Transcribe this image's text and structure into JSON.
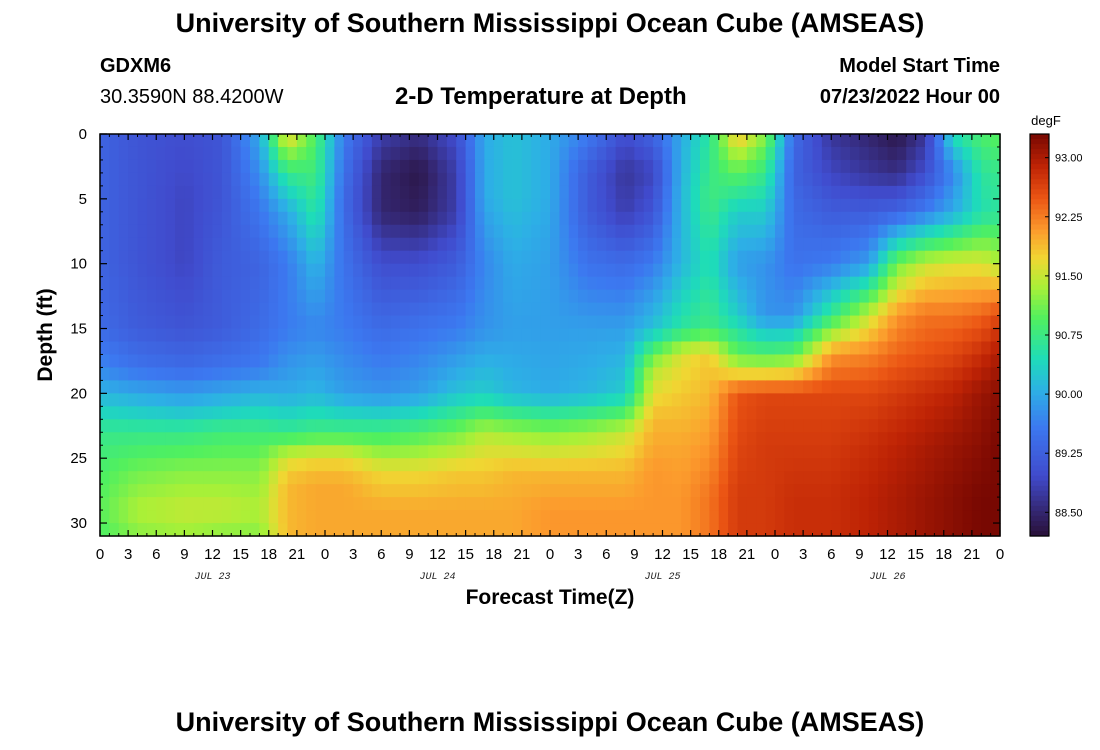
{
  "header": {
    "title": "University of Southern Mississippi Ocean Cube (AMSEAS)",
    "station": "GDXM6",
    "coords": "30.3590N  88.4200W",
    "subtitle": "2-D Temperature at Depth",
    "model_start_label": "Model Start Time",
    "model_start_value": "07/23/2022 Hour 00"
  },
  "footer": {
    "title": "University of Southern Mississippi Ocean Cube (AMSEAS)"
  },
  "chart_data": {
    "type": "heatmap",
    "title": "2-D Temperature at Depth",
    "xlabel": "Forecast Time(Z)",
    "ylabel": "Depth (ft)",
    "xlim": [
      0,
      96
    ],
    "ylim": [
      0,
      31
    ],
    "x_ticks": [
      0,
      3,
      6,
      9,
      12,
      15,
      18,
      21,
      24,
      27,
      30,
      33,
      36,
      39,
      42,
      45,
      48,
      51,
      54,
      57,
      60,
      63,
      66,
      69,
      72,
      75,
      78,
      81,
      84,
      87,
      90,
      93,
      96
    ],
    "x_tick_labels": [
      "0",
      "3",
      "6",
      "9",
      "12",
      "15",
      "18",
      "21",
      "0",
      "3",
      "6",
      "9",
      "12",
      "15",
      "18",
      "21",
      "0",
      "3",
      "6",
      "9",
      "12",
      "15",
      "18",
      "21",
      "0",
      "3",
      "6",
      "9",
      "12",
      "15",
      "18",
      "21",
      "0"
    ],
    "day_labels": [
      {
        "hour": 12,
        "label": "JUL 23"
      },
      {
        "hour": 36,
        "label": "JUL 24"
      },
      {
        "hour": 60,
        "label": "JUL 25"
      },
      {
        "hour": 84,
        "label": "JUL 26"
      }
    ],
    "y_ticks": [
      0,
      5,
      10,
      15,
      20,
      25,
      30
    ],
    "y_tick_labels": [
      "0",
      "5",
      "10",
      "15",
      "20",
      "25",
      "30"
    ],
    "colorbar": {
      "units": "degF",
      "min": 88.2,
      "max": 93.3,
      "ticks": [
        93.0,
        92.25,
        91.5,
        90.75,
        90.0,
        89.25,
        88.5
      ],
      "tick_labels": [
        "93.00",
        "92.25",
        "91.50",
        "90.75",
        "90.00",
        "89.25",
        "88.50"
      ]
    },
    "temperature_profiles": [
      {
        "hour": 0,
        "depths": [
          0,
          10,
          15,
          18,
          21,
          23,
          26,
          29,
          31
        ],
        "temps": [
          89.3,
          89.3,
          89.4,
          89.7,
          90.3,
          90.7,
          90.9,
          91.0,
          90.9
        ]
      },
      {
        "hour": 4,
        "depths": [
          0,
          10,
          15,
          18,
          21,
          23,
          26,
          29,
          31
        ],
        "temps": [
          89.1,
          89.1,
          89.2,
          89.5,
          90.2,
          90.7,
          91.1,
          91.4,
          91.2
        ]
      },
      {
        "hour": 9,
        "depths": [
          0,
          5,
          10,
          15,
          18,
          21,
          23,
          26,
          29,
          31
        ],
        "temps": [
          89.0,
          88.9,
          88.9,
          89.1,
          89.4,
          90.1,
          90.7,
          91.2,
          91.5,
          91.3
        ]
      },
      {
        "hour": 13,
        "depths": [
          0,
          5,
          10,
          15,
          18,
          21,
          23,
          26,
          29,
          31
        ],
        "temps": [
          89.1,
          89.1,
          89.2,
          89.2,
          89.5,
          90.2,
          90.8,
          91.2,
          91.5,
          91.2
        ]
      },
      {
        "hour": 17,
        "depths": [
          0,
          5,
          10,
          15,
          18,
          21,
          23,
          26,
          29,
          31
        ],
        "temps": [
          90.0,
          89.6,
          89.3,
          89.4,
          89.6,
          90.3,
          90.8,
          91.2,
          91.4,
          91.2
        ]
      },
      {
        "hour": 20,
        "depths": [
          0,
          3,
          6,
          10,
          15,
          20,
          23,
          25,
          27,
          31
        ],
        "temps": [
          91.8,
          90.7,
          90.0,
          89.6,
          89.6,
          90.0,
          90.7,
          91.6,
          91.9,
          91.9
        ]
      },
      {
        "hour": 23,
        "depths": [
          0,
          3,
          6,
          10,
          15,
          20,
          23,
          25,
          27,
          31
        ],
        "temps": [
          90.9,
          90.8,
          90.6,
          90.1,
          89.7,
          90.1,
          90.8,
          91.7,
          92.0,
          92.0
        ]
      },
      {
        "hour": 26,
        "depths": [
          0,
          5,
          10,
          15,
          20,
          23,
          25,
          27,
          31
        ],
        "temps": [
          89.6,
          89.4,
          89.5,
          89.6,
          89.9,
          90.8,
          91.7,
          92.0,
          92.0
        ]
      },
      {
        "hour": 30,
        "depths": [
          0,
          3,
          6,
          10,
          15,
          20,
          23,
          26,
          29,
          31
        ],
        "temps": [
          88.8,
          88.5,
          88.5,
          89.0,
          89.4,
          89.8,
          90.8,
          91.7,
          92.0,
          92.0
        ]
      },
      {
        "hour": 34,
        "depths": [
          0,
          3,
          6,
          10,
          15,
          20,
          23,
          26,
          29,
          31
        ],
        "temps": [
          88.6,
          88.3,
          88.4,
          89.0,
          89.5,
          89.9,
          90.9,
          91.7,
          92.0,
          92.0
        ]
      },
      {
        "hour": 38,
        "depths": [
          0,
          3,
          6,
          10,
          15,
          20,
          23,
          26,
          29,
          31
        ],
        "temps": [
          89.0,
          88.8,
          88.8,
          89.2,
          89.6,
          90.2,
          91.1,
          91.8,
          92.0,
          92.0
        ]
      },
      {
        "hour": 41,
        "depths": [
          0,
          5,
          10,
          15,
          20,
          23,
          26,
          29,
          31
        ],
        "temps": [
          90.0,
          90.0,
          89.7,
          89.8,
          90.3,
          91.4,
          91.8,
          92.0,
          92.0
        ]
      },
      {
        "hour": 44,
        "depths": [
          0,
          5,
          10,
          15,
          20,
          23,
          26,
          29,
          31
        ],
        "temps": [
          90.2,
          90.2,
          90.0,
          89.9,
          90.1,
          91.3,
          91.9,
          92.0,
          92.0
        ]
      },
      {
        "hour": 48,
        "depths": [
          0,
          5,
          10,
          15,
          20,
          23,
          26,
          29,
          31
        ],
        "temps": [
          90.0,
          90.0,
          89.9,
          89.9,
          90.0,
          91.2,
          91.9,
          92.1,
          92.1
        ]
      },
      {
        "hour": 52,
        "depths": [
          0,
          3,
          6,
          10,
          15,
          20,
          23,
          26,
          29,
          31
        ],
        "temps": [
          89.6,
          89.2,
          89.2,
          89.5,
          89.9,
          90.1,
          91.3,
          91.9,
          92.1,
          92.1
        ]
      },
      {
        "hour": 56,
        "depths": [
          0,
          3,
          6,
          10,
          15,
          20,
          23,
          26,
          29,
          31
        ],
        "temps": [
          89.0,
          88.7,
          88.8,
          89.4,
          89.9,
          90.3,
          91.5,
          91.9,
          92.1,
          92.1
        ]
      },
      {
        "hour": 59,
        "depths": [
          0,
          3,
          6,
          10,
          15,
          18,
          22,
          26,
          29,
          31
        ],
        "temps": [
          89.3,
          88.9,
          89.1,
          89.6,
          90.2,
          91.4,
          91.9,
          92.1,
          92.1,
          92.1
        ]
      },
      {
        "hour": 62,
        "depths": [
          0,
          5,
          10,
          15,
          17,
          20,
          24,
          28,
          31
        ],
        "temps": [
          90.0,
          90.1,
          90.1,
          90.6,
          91.6,
          91.8,
          92.0,
          92.1,
          92.1
        ]
      },
      {
        "hour": 65,
        "depths": [
          0,
          5,
          10,
          15,
          17,
          20,
          24,
          28,
          31
        ],
        "temps": [
          90.6,
          90.8,
          90.5,
          90.8,
          91.8,
          91.9,
          92.1,
          92.3,
          92.3
        ]
      },
      {
        "hour": 68,
        "depths": [
          0,
          3,
          6,
          10,
          14,
          17,
          20,
          24,
          28,
          31
        ],
        "temps": [
          91.9,
          91.0,
          90.3,
          89.9,
          90.3,
          91.0,
          92.5,
          92.6,
          92.7,
          92.7
        ]
      },
      {
        "hour": 71,
        "depths": [
          0,
          3,
          6,
          10,
          14,
          17,
          20,
          24,
          28,
          31
        ],
        "temps": [
          91.2,
          90.7,
          90.3,
          89.8,
          89.8,
          90.9,
          92.6,
          92.7,
          92.7,
          92.7
        ]
      },
      {
        "hour": 74,
        "depths": [
          0,
          3,
          6,
          10,
          14,
          17,
          20,
          24,
          28,
          31
        ],
        "temps": [
          89.4,
          89.3,
          89.4,
          89.5,
          89.8,
          91.0,
          92.6,
          92.7,
          92.8,
          92.8
        ]
      },
      {
        "hour": 78,
        "depths": [
          0,
          3,
          6,
          10,
          14,
          17,
          20,
          24,
          28,
          31
        ],
        "temps": [
          88.7,
          88.9,
          89.2,
          89.6,
          90.7,
          92.1,
          92.6,
          92.7,
          92.8,
          92.8
        ]
      },
      {
        "hour": 82,
        "depths": [
          0,
          3,
          6,
          10,
          14,
          17,
          20,
          24,
          28,
          31
        ],
        "temps": [
          88.5,
          88.7,
          89.2,
          89.9,
          91.5,
          92.2,
          92.6,
          92.8,
          92.9,
          92.9
        ]
      },
      {
        "hour": 85,
        "depths": [
          0,
          3,
          6,
          10,
          14,
          17,
          20,
          24,
          28,
          31
        ],
        "temps": [
          88.3,
          88.6,
          89.3,
          91.1,
          92.1,
          92.4,
          92.7,
          92.9,
          93.0,
          93.0
        ]
      },
      {
        "hour": 88,
        "depths": [
          0,
          3,
          6,
          10,
          14,
          17,
          20,
          24,
          28,
          31
        ],
        "temps": [
          88.7,
          89.0,
          89.6,
          91.5,
          92.3,
          92.5,
          92.8,
          93.0,
          93.1,
          93.1
        ]
      },
      {
        "hour": 91,
        "depths": [
          0,
          3,
          6,
          10,
          14,
          17,
          20,
          24,
          28,
          31
        ],
        "temps": [
          90.5,
          89.7,
          90.0,
          91.6,
          92.3,
          92.6,
          92.9,
          93.1,
          93.2,
          93.2
        ]
      },
      {
        "hour": 94,
        "depths": [
          0,
          3,
          6,
          10,
          14,
          17,
          20,
          24,
          28,
          31
        ],
        "temps": [
          90.9,
          90.6,
          90.5,
          91.6,
          92.4,
          92.8,
          93.1,
          93.2,
          93.3,
          93.3
        ]
      },
      {
        "hour": 96,
        "depths": [
          0,
          3,
          6,
          10,
          14,
          17,
          20,
          24,
          28,
          31
        ],
        "temps": [
          91.0,
          90.7,
          90.6,
          91.4,
          92.6,
          93.0,
          93.2,
          93.3,
          93.3,
          93.3
        ]
      }
    ]
  }
}
